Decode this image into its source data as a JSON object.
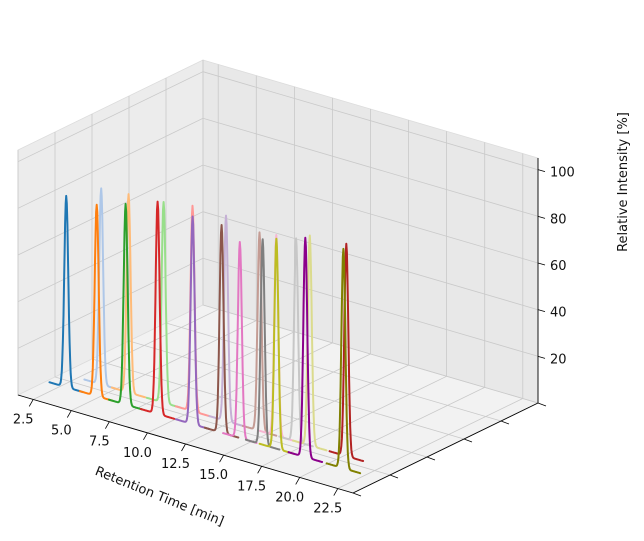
{
  "chart_data": {
    "type": "line",
    "projection": "3d",
    "title": "",
    "xlabel": "Retention Time [min]",
    "ylabel": "",
    "zlabel": "Relative Intensity [%]",
    "x_ticks": [
      "2.5",
      "5.0",
      "7.5",
      "10.0",
      "12.5",
      "15.0",
      "17.5",
      "20.0",
      "22.5"
    ],
    "z_ticks": [
      "20",
      "40",
      "60",
      "80",
      "100"
    ],
    "xlim": [
      1.5,
      23.5
    ],
    "ylim": [
      0,
      10
    ],
    "zlim": [
      0,
      105
    ],
    "grid": true,
    "series": [
      {
        "color": "#1f77b4",
        "rt": 4.0,
        "depth": 0.55,
        "intensity": 88
      },
      {
        "color": "#aec7e8",
        "rt": 5.2,
        "depth": 1.45,
        "intensity": 90
      },
      {
        "color": "#ff7f0e",
        "rt": 6.0,
        "depth": 0.55,
        "intensity": 88
      },
      {
        "color": "#ffbb78",
        "rt": 7.0,
        "depth": 1.45,
        "intensity": 91
      },
      {
        "color": "#2ca02c",
        "rt": 7.9,
        "depth": 0.55,
        "intensity": 92
      },
      {
        "color": "#98df8a",
        "rt": 9.3,
        "depth": 1.45,
        "intensity": 92
      },
      {
        "color": "#d62728",
        "rt": 10.0,
        "depth": 0.55,
        "intensity": 97
      },
      {
        "color": "#ff9896",
        "rt": 11.2,
        "depth": 1.45,
        "intensity": 94
      },
      {
        "color": "#9467bd",
        "rt": 12.3,
        "depth": 0.55,
        "intensity": 95
      },
      {
        "color": "#c5b0d5",
        "rt": 13.4,
        "depth": 1.45,
        "intensity": 94
      },
      {
        "color": "#8c564b",
        "rt": 14.2,
        "depth": 0.55,
        "intensity": 95
      },
      {
        "color": "#c49c94",
        "rt": 15.6,
        "depth": 1.45,
        "intensity": 91
      },
      {
        "color": "#e377c2",
        "rt": 15.4,
        "depth": 0.55,
        "intensity": 90
      },
      {
        "color": "#f7b6d2",
        "rt": 16.7,
        "depth": 1.45,
        "intensity": 92
      },
      {
        "color": "#7f7f7f",
        "rt": 16.9,
        "depth": 0.55,
        "intensity": 94
      },
      {
        "color": "#c7c7c7",
        "rt": 18.0,
        "depth": 1.45,
        "intensity": 93
      },
      {
        "color": "#bcbd22",
        "rt": 17.8,
        "depth": 0.55,
        "intensity": 96
      },
      {
        "color": "#dbdb8d",
        "rt": 18.9,
        "depth": 1.45,
        "intensity": 96
      },
      {
        "color": "#8b008b",
        "rt": 19.7,
        "depth": 0.55,
        "intensity": 100
      },
      {
        "color": "#b22222",
        "rt": 21.3,
        "depth": 1.45,
        "intensity": 97
      },
      {
        "color": "#808000",
        "rt": 22.2,
        "depth": 0.55,
        "intensity": 100
      }
    ]
  }
}
